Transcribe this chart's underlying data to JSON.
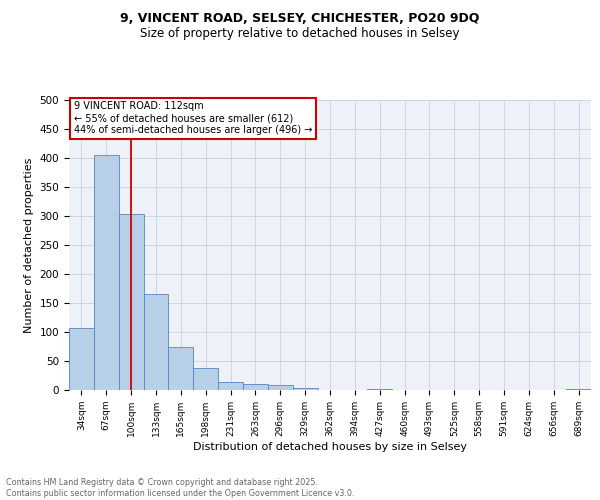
{
  "title_line1": "9, VINCENT ROAD, SELSEY, CHICHESTER, PO20 9DQ",
  "title_line2": "Size of property relative to detached houses in Selsey",
  "xlabel": "Distribution of detached houses by size in Selsey",
  "ylabel": "Number of detached properties",
  "categories": [
    "34sqm",
    "67sqm",
    "100sqm",
    "133sqm",
    "165sqm",
    "198sqm",
    "231sqm",
    "263sqm",
    "296sqm",
    "329sqm",
    "362sqm",
    "394sqm",
    "427sqm",
    "460sqm",
    "493sqm",
    "525sqm",
    "558sqm",
    "591sqm",
    "624sqm",
    "656sqm",
    "689sqm"
  ],
  "values": [
    107,
    405,
    303,
    165,
    75,
    38,
    14,
    11,
    9,
    4,
    0,
    0,
    2,
    0,
    0,
    0,
    0,
    0,
    0,
    0,
    2
  ],
  "bar_color": "#b8cfe8",
  "bar_edge_color": "#5585c5",
  "vline_x": 2,
  "vline_color": "#cc0000",
  "annotation_text": "9 VINCENT ROAD: 112sqm\n← 55% of detached houses are smaller (612)\n44% of semi-detached houses are larger (496) →",
  "annotation_box_color": "#ffffff",
  "annotation_box_edge": "#cc0000",
  "ylim": [
    0,
    500
  ],
  "yticks": [
    0,
    50,
    100,
    150,
    200,
    250,
    300,
    350,
    400,
    450,
    500
  ],
  "grid_color": "#ccd5e8",
  "background_color": "#eef2f8",
  "footer_line1": "Contains HM Land Registry data © Crown copyright and database right 2025.",
  "footer_line2": "Contains public sector information licensed under the Open Government Licence v3.0."
}
